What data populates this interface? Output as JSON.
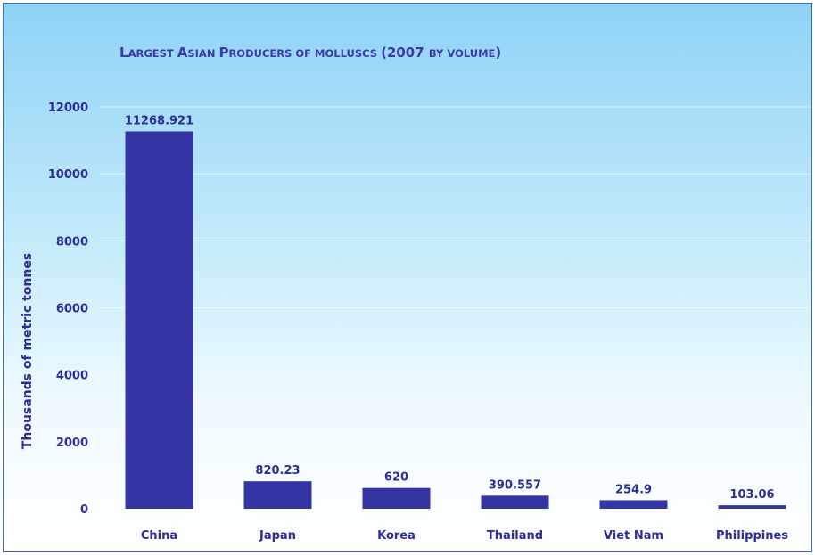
{
  "chart_data": {
    "type": "bar",
    "title_parts": [
      {
        "text": "L",
        "size": "big"
      },
      {
        "text": "ARGEST ",
        "size": "small"
      },
      {
        "text": "A",
        "size": "big"
      },
      {
        "text": "SIAN ",
        "size": "small"
      },
      {
        "text": "P",
        "size": "big"
      },
      {
        "text": "RODUCERS OF MOLLUSCS ",
        "size": "small"
      },
      {
        "text": " (2007 ",
        "size": "big"
      },
      {
        "text": "BY VOLUME",
        "size": "small"
      },
      {
        "text": ")",
        "size": "big"
      }
    ],
    "ylabel": "Thousands of metric tonnes",
    "xlabel": "",
    "categories": [
      "China",
      "Japan",
      "Korea",
      "Thailand",
      "Viet Nam",
      "Philippines"
    ],
    "values": [
      11268.921,
      820.23,
      620,
      390.557,
      254.9,
      103.06
    ],
    "data_labels": [
      "11268.921",
      "820.23",
      "620",
      "390.557",
      "254.9",
      "103.06"
    ],
    "ylim": [
      0,
      12000
    ],
    "yticks": [
      0,
      2000,
      4000,
      6000,
      8000,
      10000,
      12000
    ],
    "bar_color": "#3434a4",
    "text_color": "#2c2c9a",
    "grid": true,
    "legend": false
  }
}
